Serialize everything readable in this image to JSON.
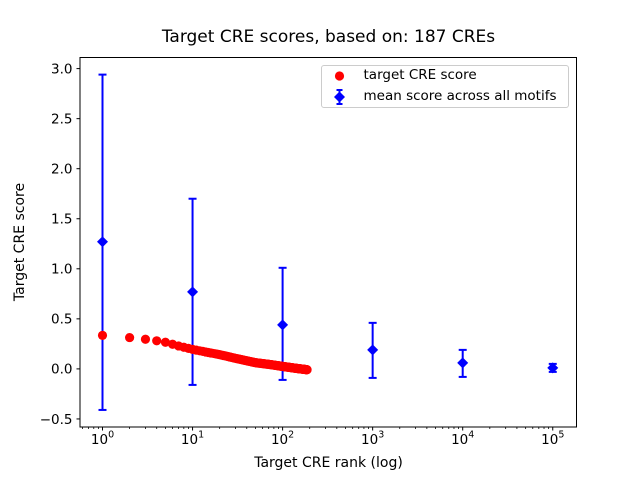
{
  "figure": {
    "title": "Target CRE scores, based on: 187 CREs",
    "xlabel": "Target CRE rank (log)",
    "ylabel": "Target CRE score"
  },
  "legend": {
    "items": [
      {
        "label": "target CRE score",
        "marker": "circle",
        "color": "#ff0000"
      },
      {
        "label": "mean score across all motifs",
        "marker": "diamond-errorbar",
        "color": "#0000ff"
      }
    ]
  },
  "chart_data": {
    "type": "scatter",
    "title": "Target CRE scores, based on: 187 CREs",
    "xlabel": "Target CRE rank (log)",
    "ylabel": "Target CRE score",
    "x_scale": "log",
    "xlim_log10": [
      -0.25,
      5.258
    ],
    "ylim": [
      -0.567,
      3.097
    ],
    "x_tick_exponents": [
      0,
      1,
      2,
      3,
      4,
      5
    ],
    "y_ticks": [
      -0.5,
      0.0,
      0.5,
      1.0,
      1.5,
      2.0,
      2.5,
      3.0
    ],
    "grid": false,
    "legend_position": "upper right",
    "series": [
      {
        "name": "mean score across all motifs",
        "marker": "diamond",
        "color": "#0000ff",
        "points": [
          {
            "x": 1,
            "y": 1.27,
            "bar_low": -0.41,
            "bar_high": 2.94
          },
          {
            "x": 10,
            "y": 0.77,
            "bar_low": -0.16,
            "bar_high": 1.7
          },
          {
            "x": 100,
            "y": 0.44,
            "bar_low": -0.11,
            "bar_high": 1.01
          },
          {
            "x": 1000,
            "y": 0.19,
            "bar_low": -0.09,
            "bar_high": 0.46
          },
          {
            "x": 10000,
            "y": 0.06,
            "bar_low": -0.08,
            "bar_high": 0.19
          },
          {
            "x": 100000,
            "y": 0.01,
            "bar_low": -0.03,
            "bar_high": 0.05
          }
        ]
      },
      {
        "name": "target CRE score",
        "marker": "circle",
        "color": "#ff0000",
        "rank_from": 1,
        "rank_to": 187,
        "control_points_log10rank_to_value": [
          [
            0.0,
            0.335
          ],
          [
            0.3,
            0.313
          ],
          [
            0.48,
            0.296
          ],
          [
            0.6,
            0.281
          ],
          [
            0.7,
            0.266
          ],
          [
            0.85,
            0.228
          ],
          [
            1.0,
            0.195
          ],
          [
            1.18,
            0.163
          ],
          [
            1.3,
            0.143
          ],
          [
            1.48,
            0.105
          ],
          [
            1.7,
            0.062
          ],
          [
            1.86,
            0.044
          ],
          [
            2.0,
            0.025
          ],
          [
            2.15,
            0.006
          ],
          [
            2.272,
            -0.008
          ]
        ]
      }
    ]
  }
}
